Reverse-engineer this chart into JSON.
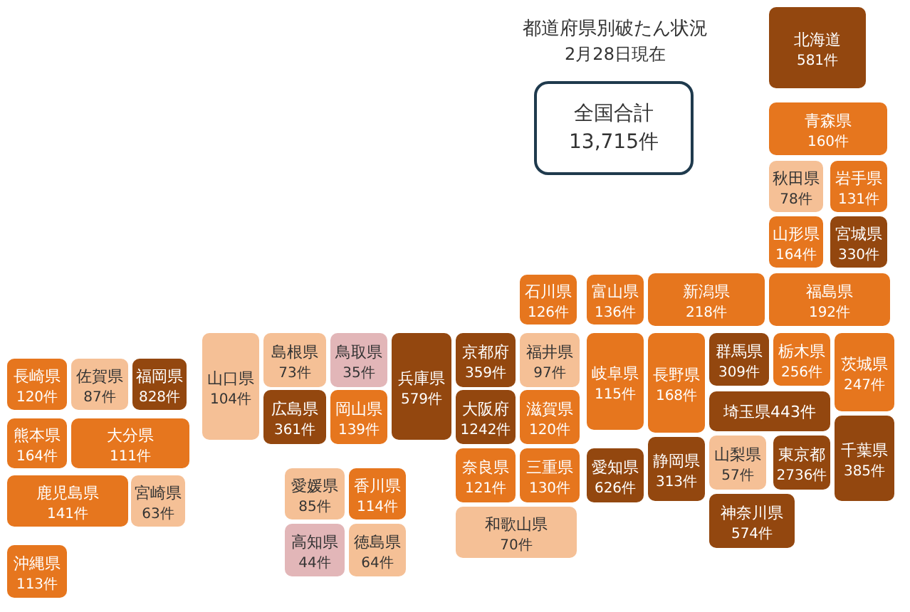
{
  "chart_data": {
    "type": "other",
    "title": "都道府県別破たん状況",
    "subtitle": "2月28日現在",
    "annotations": [
      "全国合計",
      "13,715件"
    ],
    "categories": [
      "北海道",
      "青森県",
      "秋田県",
      "岩手県",
      "山形県",
      "宮城県",
      "福島県",
      "新潟県",
      "石川県",
      "富山県",
      "長野県",
      "岐阜県",
      "群馬県",
      "栃木県",
      "茨城県",
      "埼玉県",
      "山梨県",
      "東京都",
      "千葉県",
      "神奈川県",
      "静岡県",
      "愛知県",
      "三重県",
      "奈良県",
      "和歌山県",
      "京都府",
      "大阪府",
      "福井県",
      "滋賀県",
      "兵庫県",
      "鳥取県",
      "岡山県",
      "島根県",
      "広島県",
      "山口県",
      "愛媛県",
      "香川県",
      "高知県",
      "徳島県",
      "福岡県",
      "佐賀県",
      "長崎県",
      "熊本県",
      "大分県",
      "鹿児島県",
      "宮崎県",
      "沖縄県"
    ],
    "values": [
      581,
      160,
      78,
      131,
      164,
      330,
      192,
      218,
      126,
      136,
      168,
      115,
      309,
      256,
      247,
      443,
      57,
      2736,
      385,
      574,
      313,
      626,
      130,
      121,
      70,
      359,
      1242,
      97,
      120,
      579,
      35,
      139,
      73,
      361,
      104,
      85,
      114,
      44,
      64,
      828,
      87,
      120,
      164,
      111,
      141,
      63,
      113
    ],
    "value_labels": [
      "581件",
      "160件",
      "78件",
      "131件",
      "164件",
      "330件",
      "192件",
      "218件",
      "126件",
      "136件",
      "168件",
      "115件",
      "309件",
      "256件",
      "247件",
      "443件",
      "57件",
      "2736件",
      "385件",
      "574件",
      "313件",
      "626件",
      "130件",
      "121件",
      "70件",
      "359件",
      "1242件",
      "97件",
      "120件",
      "579件",
      "35件",
      "139件",
      "73件",
      "361件",
      "104件",
      "85件",
      "114件",
      "44件",
      "64件",
      "828件",
      "87件",
      "120件",
      "164件",
      "111件",
      "141件",
      "63件",
      "113件"
    ],
    "colors": [
      "#93470f",
      "#e6761e",
      "#f5c096",
      "#e6761e",
      "#e6761e",
      "#93470f",
      "#e6761e",
      "#e6761e",
      "#e6761e",
      "#e6761e",
      "#e6761e",
      "#e6761e",
      "#93470f",
      "#e6761e",
      "#e6761e",
      "#93470f",
      "#f5c096",
      "#93470f",
      "#93470f",
      "#93470f",
      "#93470f",
      "#93470f",
      "#e6761e",
      "#e6761e",
      "#f5c096",
      "#93470f",
      "#93470f",
      "#f5c096",
      "#e6761e",
      "#93470f",
      "#e2b6b8",
      "#e6761e",
      "#f5c096",
      "#93470f",
      "#f5c096",
      "#f5c096",
      "#e6761e",
      "#e2b6b8",
      "#f5c096",
      "#93470f",
      "#f5c096",
      "#e6761e",
      "#e6761e",
      "#e6761e",
      "#e6761e",
      "#f5c096",
      "#e6761e"
    ]
  }
}
